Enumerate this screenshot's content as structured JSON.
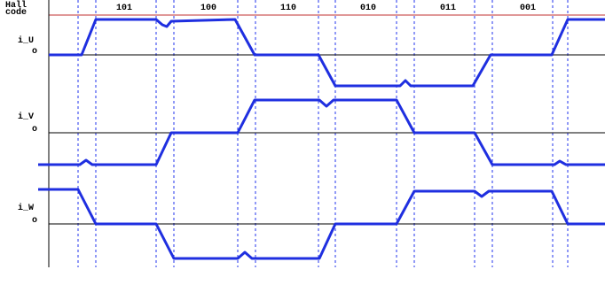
{
  "header": {
    "lines": [
      "Hall",
      "code"
    ]
  },
  "hall_codes": [
    "101",
    "100",
    "110",
    "010",
    "011",
    "001"
  ],
  "phases": [
    {
      "label": "i_U",
      "origin": "o"
    },
    {
      "label": "i_V",
      "origin": "o"
    },
    {
      "label": "i_W",
      "origin": "o"
    }
  ]
}
